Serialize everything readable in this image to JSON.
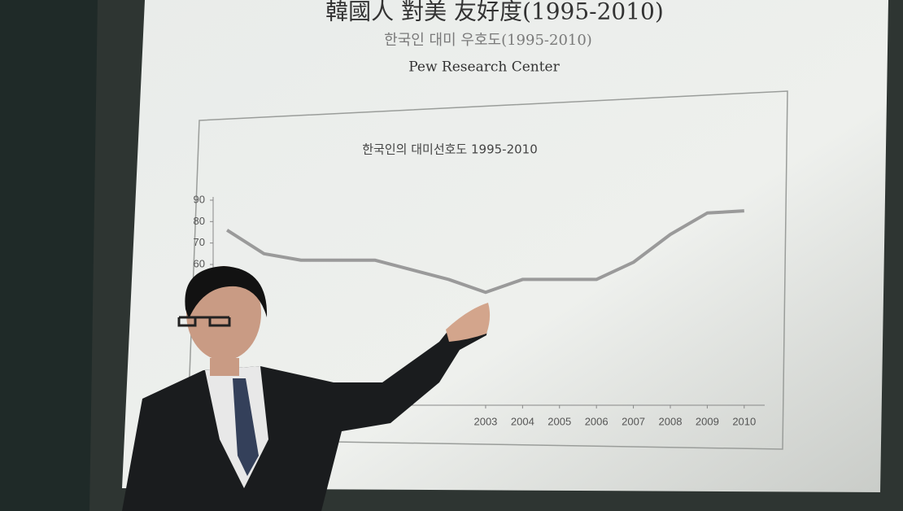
{
  "slide": {
    "title": "韓國人 對美 友好度(1995-2010)",
    "subtitle": "한국인 대미 우호도(1995-2010)",
    "source": "Pew Research Center"
  },
  "chart_data": {
    "type": "line",
    "title": "한국인의 대미선호도 1995-2010",
    "x": [
      1996,
      1997,
      1998,
      2000,
      2002,
      2003,
      2004,
      2006,
      2007,
      2008,
      2009,
      2010
    ],
    "series": [
      {
        "color": "#9a9a9a",
        "values": [
          76,
          65,
          62,
          62,
          53,
          47,
          53,
          53,
          61,
          74,
          84,
          85
        ]
      }
    ],
    "xlim": [
      1994.5,
      2010.5
    ],
    "xticks": [
      2003,
      2004,
      2005,
      2006,
      2007,
      2008,
      2009,
      2010
    ],
    "ylim": [
      0,
      90
    ],
    "yticks": [
      60,
      70,
      80,
      90
    ]
  }
}
